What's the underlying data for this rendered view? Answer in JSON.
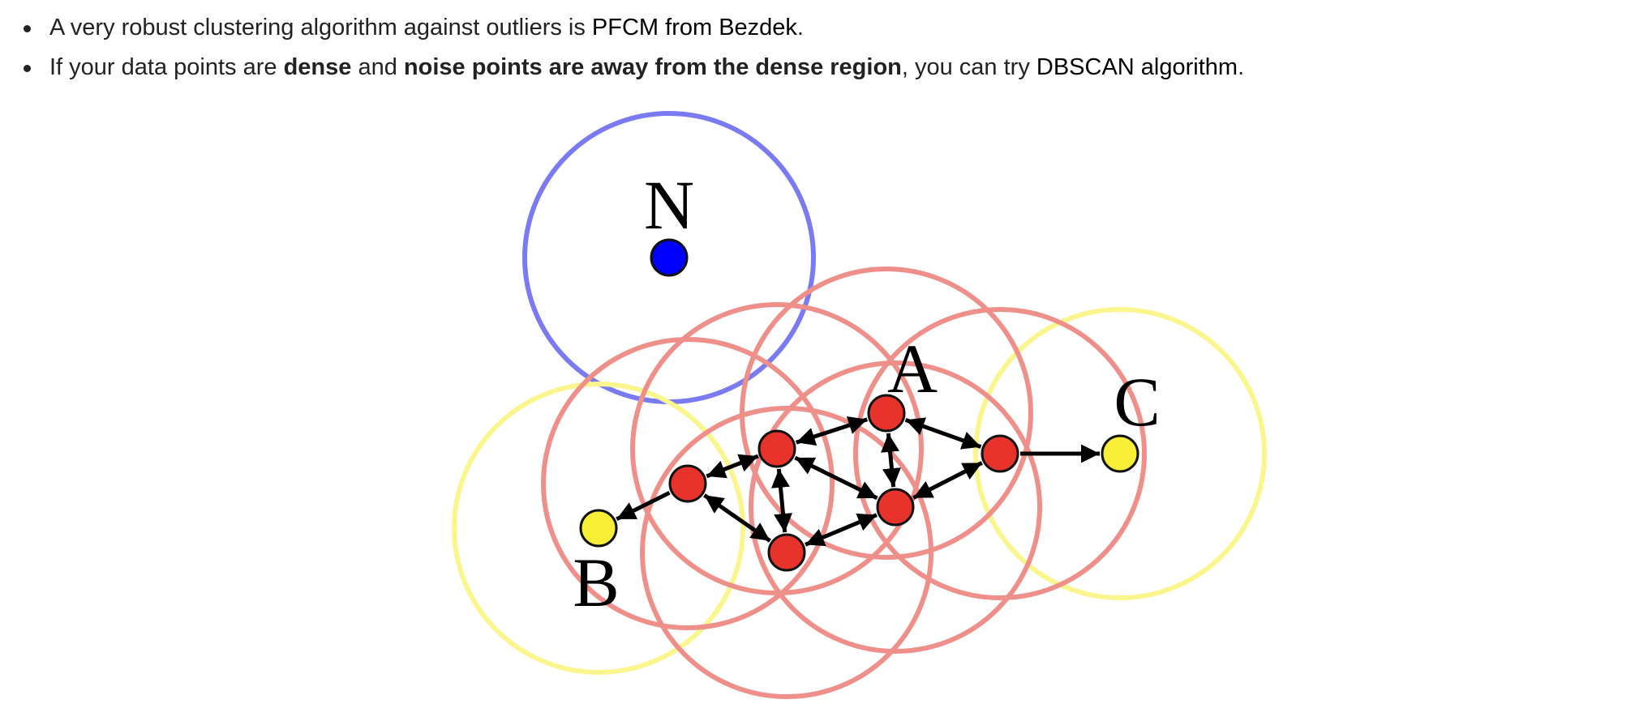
{
  "bullets": [
    {
      "pre": "A very robust clustering algorithm against outliers is ",
      "link": "PFCM from Bezdek",
      "post": "."
    },
    {
      "pre": "If your data points are ",
      "bold1": "dense",
      "mid": " and ",
      "bold2": "noise points are away from the dense region",
      "post": ", you can try ",
      "link": "DBSCAN algorithm",
      "end": "."
    }
  ],
  "figure": {
    "labels": {
      "noise": "N",
      "core": "A",
      "border_left": "B",
      "border_right": "C"
    },
    "colors": {
      "noise_circle": "#7a7af2",
      "noise_point": "#0000ff",
      "core_circle": "#ef8f8a",
      "core_point": "#e8332a",
      "border_circle": "#fbf58e",
      "border_point": "#f7ee35",
      "arrow": "#000000"
    }
  }
}
